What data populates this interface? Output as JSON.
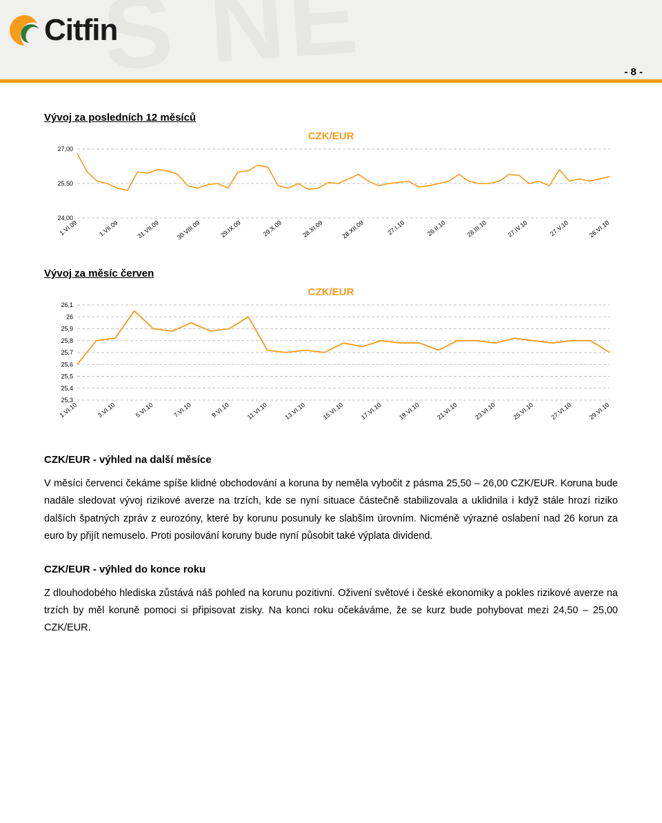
{
  "page_number": "- 8 -",
  "logo_text": "Citfin",
  "bg_watermark": "S NE",
  "section1": {
    "title": "Vývoj za posledních 12 měsíců",
    "chart_label": "CZK/EUR"
  },
  "section2": {
    "title": "Vývoj za měsíc červen",
    "chart_label": "CZK/EUR"
  },
  "outlook1_heading": "CZK/EUR - výhled na další měsíce",
  "outlook1_para": "V měsíci červenci čekáme spíše klidné obchodování a koruna by neměla vybočit z pásma 25,50 – 26,00 CZK/EUR. Koruna bude nadále sledovat vývoj rizikové averze na trzích, kde se nyní situace částečně stabilizovala a uklidnila i když stále hrozí riziko dalších špatných zpráv z eurozóny, které by korunu posunuly ke slabším úrovním. Nicméně výrazné oslabení nad 26 korun za euro by přijít nemuselo. Proti posilování koruny bude nyní působit také výplata dividend.",
  "outlook2_heading": "CZK/EUR - výhled do konce roku",
  "outlook2_para": "Z dlouhodobého hlediska zůstává náš pohled na korunu pozitivní. Oživení světové i české ekonomiky a pokles rizikové averze na trzích by měl koruně pomoci si připisovat zisky. Na konci roku očekáváme, že se kurz bude pohybovat mezi 24,50 – 25,00 CZK/EUR.",
  "chart12m": {
    "type": "line",
    "ylim": [
      24.0,
      27.0
    ],
    "yticks": [
      24.0,
      25.5,
      27.0
    ],
    "ytick_labels": [
      "24,00",
      "25,50",
      "27,00"
    ],
    "xlabels": [
      "1.VI.09",
      "1.VII.09",
      "31.VII.09",
      "30.VIII.09",
      "29.IX.09",
      "29.X.09",
      "28.XI.09",
      "28.XII.09",
      "27.I.10",
      "26.II.10",
      "28.III.10",
      "27.IV.10",
      "27.V.10",
      "26.VI.10"
    ],
    "series": [
      26.8,
      26.0,
      25.6,
      25.5,
      25.3,
      25.2,
      26.0,
      25.95,
      26.1,
      26.05,
      25.9,
      25.4,
      25.3,
      25.45,
      25.5,
      25.3,
      26.0,
      26.05,
      26.3,
      26.2,
      25.4,
      25.3,
      25.5,
      25.25,
      25.3,
      25.55,
      25.5,
      25.7,
      25.9,
      25.6,
      25.4,
      25.5,
      25.55,
      25.6,
      25.35,
      25.4,
      25.5,
      25.6,
      25.9,
      25.6,
      25.5,
      25.5,
      25.6,
      25.9,
      25.85,
      25.5,
      25.6,
      25.4,
      26.1,
      25.6,
      25.7,
      25.6,
      25.7,
      25.8
    ],
    "line_color": "#f79b1c",
    "grid_color": "#bfbfbf",
    "axis_font_size": 9,
    "background_color": "#ffffff"
  },
  "chart1m": {
    "type": "line",
    "ylim": [
      25.3,
      26.1
    ],
    "yticks": [
      25.3,
      25.4,
      25.5,
      25.6,
      25.7,
      25.8,
      25.9,
      26.0,
      26.1
    ],
    "ytick_labels": [
      "25,3",
      "25,4",
      "25,5",
      "25,6",
      "25,7",
      "25,8",
      "25,9",
      "26",
      "26,1"
    ],
    "xlabels": [
      "1.VI.10",
      "3.VI.10",
      "5.VI.10",
      "7.VI.10",
      "9.VI.10",
      "11.VI.10",
      "13.VI.10",
      "15.VI.10",
      "17.VI.10",
      "19.VI.10",
      "21.VI.10",
      "23.VI.10",
      "25.VI.10",
      "27.VI.10",
      "29.VI.10"
    ],
    "x_values": [
      1,
      3,
      5,
      7,
      9,
      11,
      13,
      15,
      17,
      19,
      21,
      23,
      25,
      27,
      29
    ],
    "series_points": [
      {
        "x": 1,
        "y": 25.6
      },
      {
        "x": 2,
        "y": 25.8
      },
      {
        "x": 3,
        "y": 25.82
      },
      {
        "x": 4,
        "y": 26.05
      },
      {
        "x": 5,
        "y": 25.9
      },
      {
        "x": 6,
        "y": 25.88
      },
      {
        "x": 7,
        "y": 25.95
      },
      {
        "x": 8,
        "y": 25.88
      },
      {
        "x": 9,
        "y": 25.9
      },
      {
        "x": 10,
        "y": 26.0
      },
      {
        "x": 11,
        "y": 25.72
      },
      {
        "x": 12,
        "y": 25.7
      },
      {
        "x": 13,
        "y": 25.72
      },
      {
        "x": 14,
        "y": 25.7
      },
      {
        "x": 15,
        "y": 25.78
      },
      {
        "x": 16,
        "y": 25.75
      },
      {
        "x": 17,
        "y": 25.8
      },
      {
        "x": 18,
        "y": 25.78
      },
      {
        "x": 19,
        "y": 25.78
      },
      {
        "x": 20,
        "y": 25.72
      },
      {
        "x": 21,
        "y": 25.8
      },
      {
        "x": 22,
        "y": 25.8
      },
      {
        "x": 23,
        "y": 25.78
      },
      {
        "x": 24,
        "y": 25.82
      },
      {
        "x": 25,
        "y": 25.8
      },
      {
        "x": 26,
        "y": 25.78
      },
      {
        "x": 27,
        "y": 25.8
      },
      {
        "x": 28,
        "y": 25.8
      },
      {
        "x": 29,
        "y": 25.7
      }
    ],
    "line_color": "#f79b1c",
    "grid_color": "#bfbfbf",
    "axis_font_size": 9,
    "background_color": "#ffffff"
  },
  "colors": {
    "accent": "#f79b1c",
    "text": "#000000",
    "header_bg": "#f0f0ee",
    "watermark": "#e6e6e2"
  }
}
